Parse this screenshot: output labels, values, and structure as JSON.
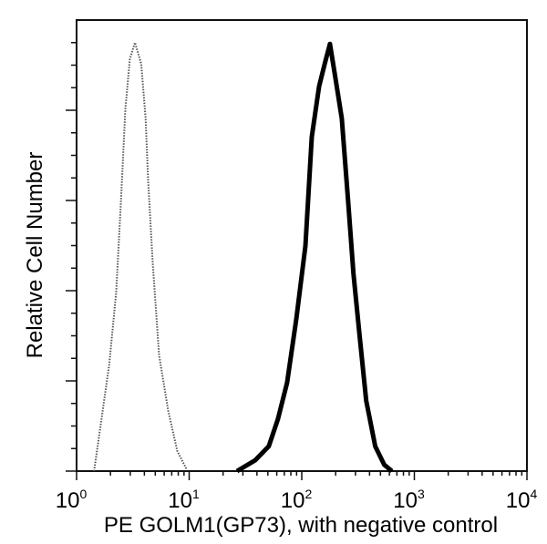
{
  "chart_data": {
    "type": "line",
    "title": "",
    "xlabel": "PE GOLM1(GP73), with negative control",
    "ylabel": "Relative Cell Number",
    "xscale": "log",
    "xlim": [
      1,
      10000
    ],
    "ylim": [
      0,
      100
    ],
    "x_ticks": [
      {
        "base": "10",
        "exp": "0",
        "value": 1
      },
      {
        "base": "10",
        "exp": "1",
        "value": 10
      },
      {
        "base": "10",
        "exp": "2",
        "value": 100
      },
      {
        "base": "10",
        "exp": "3",
        "value": 1000
      },
      {
        "base": "10",
        "exp": "4",
        "value": 10000
      }
    ],
    "y_tick_labels": [],
    "grid": false,
    "legend": null,
    "series": [
      {
        "name": "Negative control",
        "color": "#555555",
        "style": "dotted",
        "x": [
          1.43,
          1.62,
          1.95,
          2.25,
          2.48,
          2.71,
          2.97,
          3.3,
          3.75,
          4.1,
          4.33,
          4.75,
          5.4,
          6.5,
          7.85,
          9.5
        ],
        "y": [
          0,
          9.5,
          23.6,
          39.8,
          60,
          80.2,
          91.3,
          95,
          90.3,
          78.2,
          64,
          45.9,
          25.7,
          13.5,
          4.4,
          0.4
        ]
      },
      {
        "name": "PE GOLM1(GP73)",
        "color": "#000000",
        "style": "solid",
        "x": [
          26.6,
          38.6,
          50.9,
          61.4,
          74.1,
          89.4,
          107.8,
          122.8,
          142.5,
          160.0,
          178.0,
          198.7,
          226.5,
          258.0,
          288.0,
          327.6,
          373.4,
          449.6,
          540.8,
          632.0
        ],
        "y": [
          0,
          2.4,
          5.5,
          11.5,
          19.6,
          33.7,
          49.9,
          74.1,
          85.3,
          90.3,
          94.7,
          87.3,
          78.2,
          60,
          43.8,
          29.7,
          15.6,
          5.5,
          1.4,
          0
        ]
      }
    ]
  }
}
